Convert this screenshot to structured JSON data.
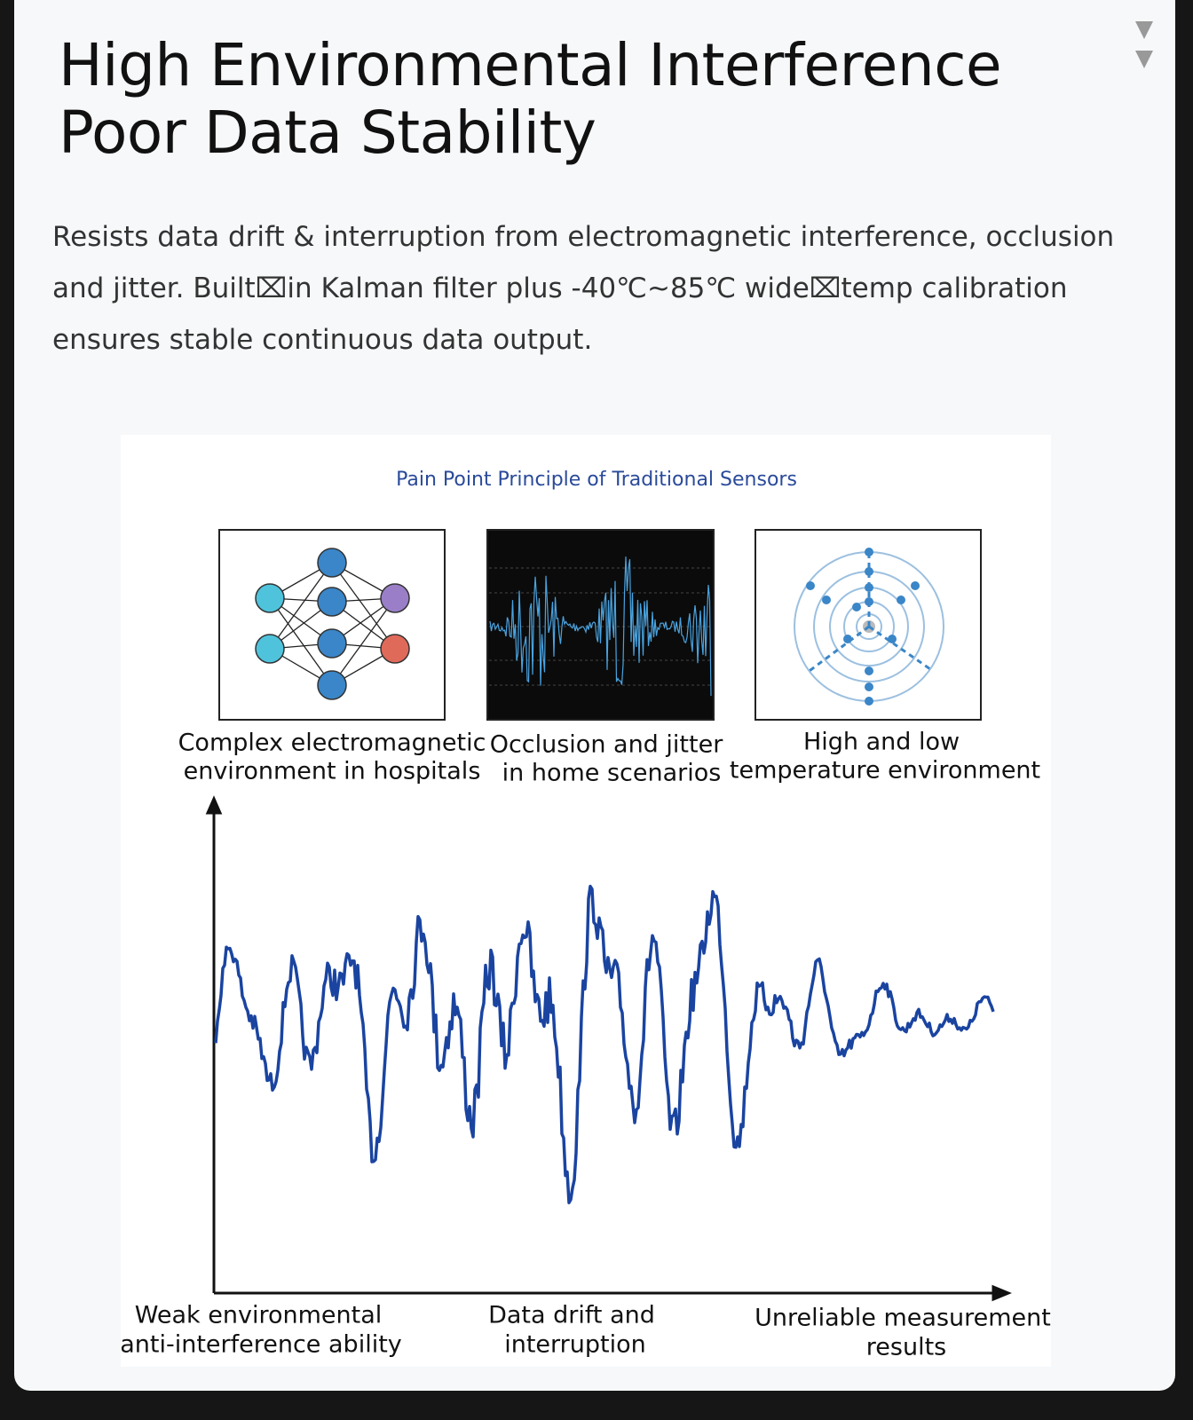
{
  "header": {
    "title_lines": [
      "High Environmental Interference",
      "Poor Data Stability"
    ]
  },
  "description": "Resists data drift & interruption from electromagnetic interference, occlusion and jitter. Built⌧in Kalman filter plus -40℃~85℃ wide⌧temp calibration ensures stable continuous data output.",
  "illustration": {
    "title": "Pain Point Principle of Traditional Sensors",
    "panels": [
      {
        "caption_lines": [
          "Complex electromagnetic",
          "environment in hospitals"
        ]
      },
      {
        "caption_lines": [
          "Occlusion and jitter",
          "in home scenarios"
        ]
      },
      {
        "caption_lines": [
          "High and low",
          "temperature environment"
        ]
      }
    ],
    "bottom_labels": [
      {
        "lines": [
          "Weak environmental",
          "anti-interference ability"
        ]
      },
      {
        "lines": [
          "Data drift and",
          "interruption"
        ]
      },
      {
        "lines": [
          "Unreliable measurement",
          "results"
        ]
      }
    ]
  }
}
